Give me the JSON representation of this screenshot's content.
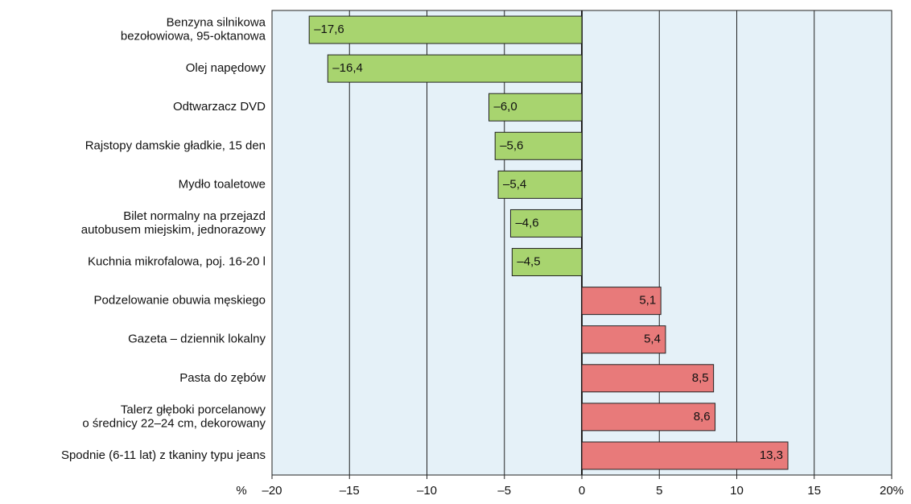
{
  "chart_data": {
    "type": "barh",
    "categories": [
      [
        "Benzyna silnikowa",
        "bezołowiowa, 95-oktanowa"
      ],
      [
        "Olej napędowy"
      ],
      [
        "Odtwarzacz DVD"
      ],
      [
        "Rajstopy damskie gładkie, 15 den"
      ],
      [
        "Mydło toaletowe"
      ],
      [
        "Bilet normalny na przejazd",
        "autobusem miejskim, jednorazowy"
      ],
      [
        "Kuchnia mikrofalowa, poj. 16-20 l"
      ],
      [
        "Podzelowanie obuwia męskiego"
      ],
      [
        "Gazeta – dziennik lokalny"
      ],
      [
        "Pasta do zębów"
      ],
      [
        "Talerz głęboki porcelanowy",
        "o średnicy 22–24 cm, dekorowany"
      ],
      [
        "Spodnie (6-11 lat) z tkaniny typu jeans"
      ]
    ],
    "values": [
      -17.6,
      -16.4,
      -6.0,
      -5.6,
      -5.4,
      -4.6,
      -4.5,
      5.1,
      5.4,
      8.5,
      8.6,
      13.3
    ],
    "value_labels": [
      "–17,6",
      "–16,4",
      "–6,0",
      "–5,6",
      "–5,4",
      "–4,6",
      "–4,5",
      "5,1",
      "5,4",
      "8,5",
      "8,6",
      "13,3"
    ],
    "negative_color": "#a8d46f",
    "positive_color": "#e87a7a",
    "xlabel": "%",
    "xlim": [
      -20,
      20
    ],
    "xticks": [
      {
        "value": -20,
        "label": "–20"
      },
      {
        "value": -15,
        "label": "–15"
      },
      {
        "value": -10,
        "label": "–10"
      },
      {
        "value": -5,
        "label": "–5"
      },
      0,
      5,
      10,
      15,
      {
        "value": 20,
        "label": "20%"
      }
    ],
    "grid": true
  }
}
